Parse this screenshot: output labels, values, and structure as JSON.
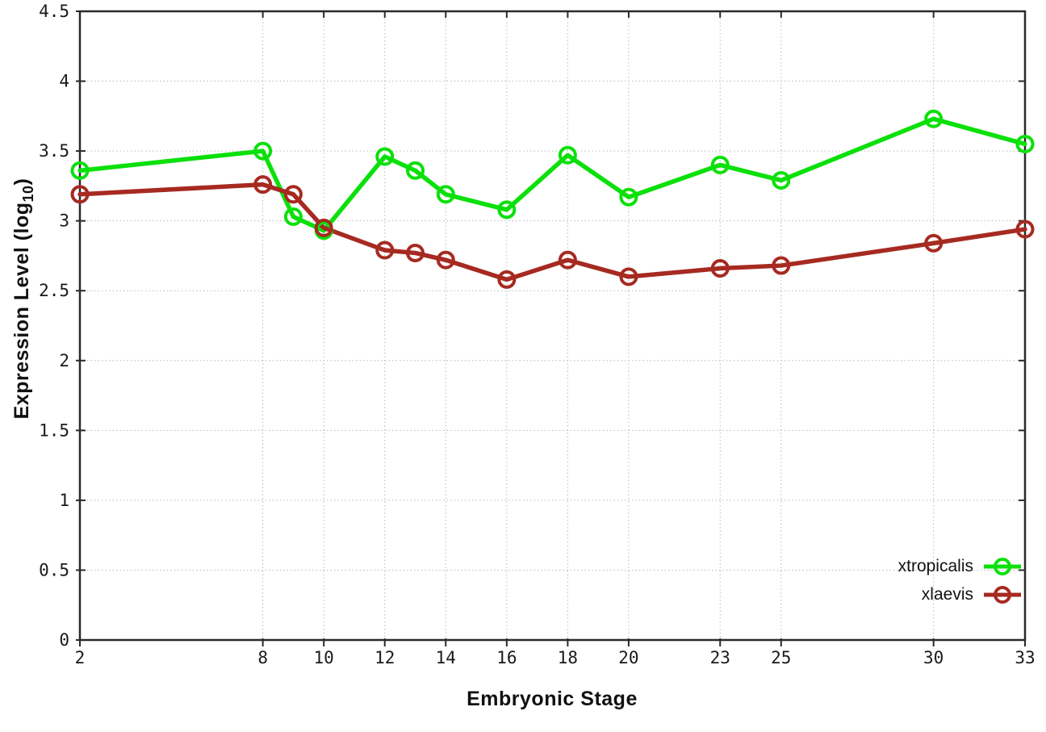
{
  "page": {
    "background": "#ffffff"
  },
  "chart_data": {
    "type": "line",
    "title": "",
    "xlabel": "Embryonic Stage",
    "ylabel": "Expression Level (log10)",
    "ylabel_parts": {
      "prefix": "Expression Level (log",
      "sub": "10",
      "suffix": ")"
    },
    "xlim": [
      2,
      33
    ],
    "ylim": [
      0,
      4.5
    ],
    "x_ticks": [
      2,
      8,
      10,
      12,
      14,
      16,
      18,
      20,
      23,
      25,
      30,
      33
    ],
    "y_ticks": [
      "0",
      "0.5",
      "1",
      "1.5",
      "2",
      "2.5",
      "3",
      "3.5",
      "4",
      "4.5"
    ],
    "grid": true,
    "legend_position": "inside-bottom-right",
    "x": [
      2,
      8,
      9,
      10,
      12,
      13,
      14,
      16,
      18,
      20,
      23,
      25,
      30,
      33
    ],
    "series": [
      {
        "name": "xtropicalis",
        "color": "#0be00b",
        "marker": "open-circle",
        "values": [
          3.36,
          3.5,
          3.03,
          2.93,
          3.46,
          3.36,
          3.19,
          3.08,
          3.47,
          3.17,
          3.4,
          3.29,
          3.73,
          3.55
        ]
      },
      {
        "name": "xlaevis",
        "color": "#a62a21",
        "marker": "open-circle",
        "values": [
          3.19,
          3.26,
          3.19,
          2.95,
          2.79,
          2.77,
          2.72,
          2.58,
          2.72,
          2.6,
          2.66,
          2.68,
          2.84,
          2.94
        ]
      }
    ],
    "axis_color": "#2a2a2a",
    "grid_color": "#b8b8b8",
    "text_color": "#1a1a1a"
  }
}
